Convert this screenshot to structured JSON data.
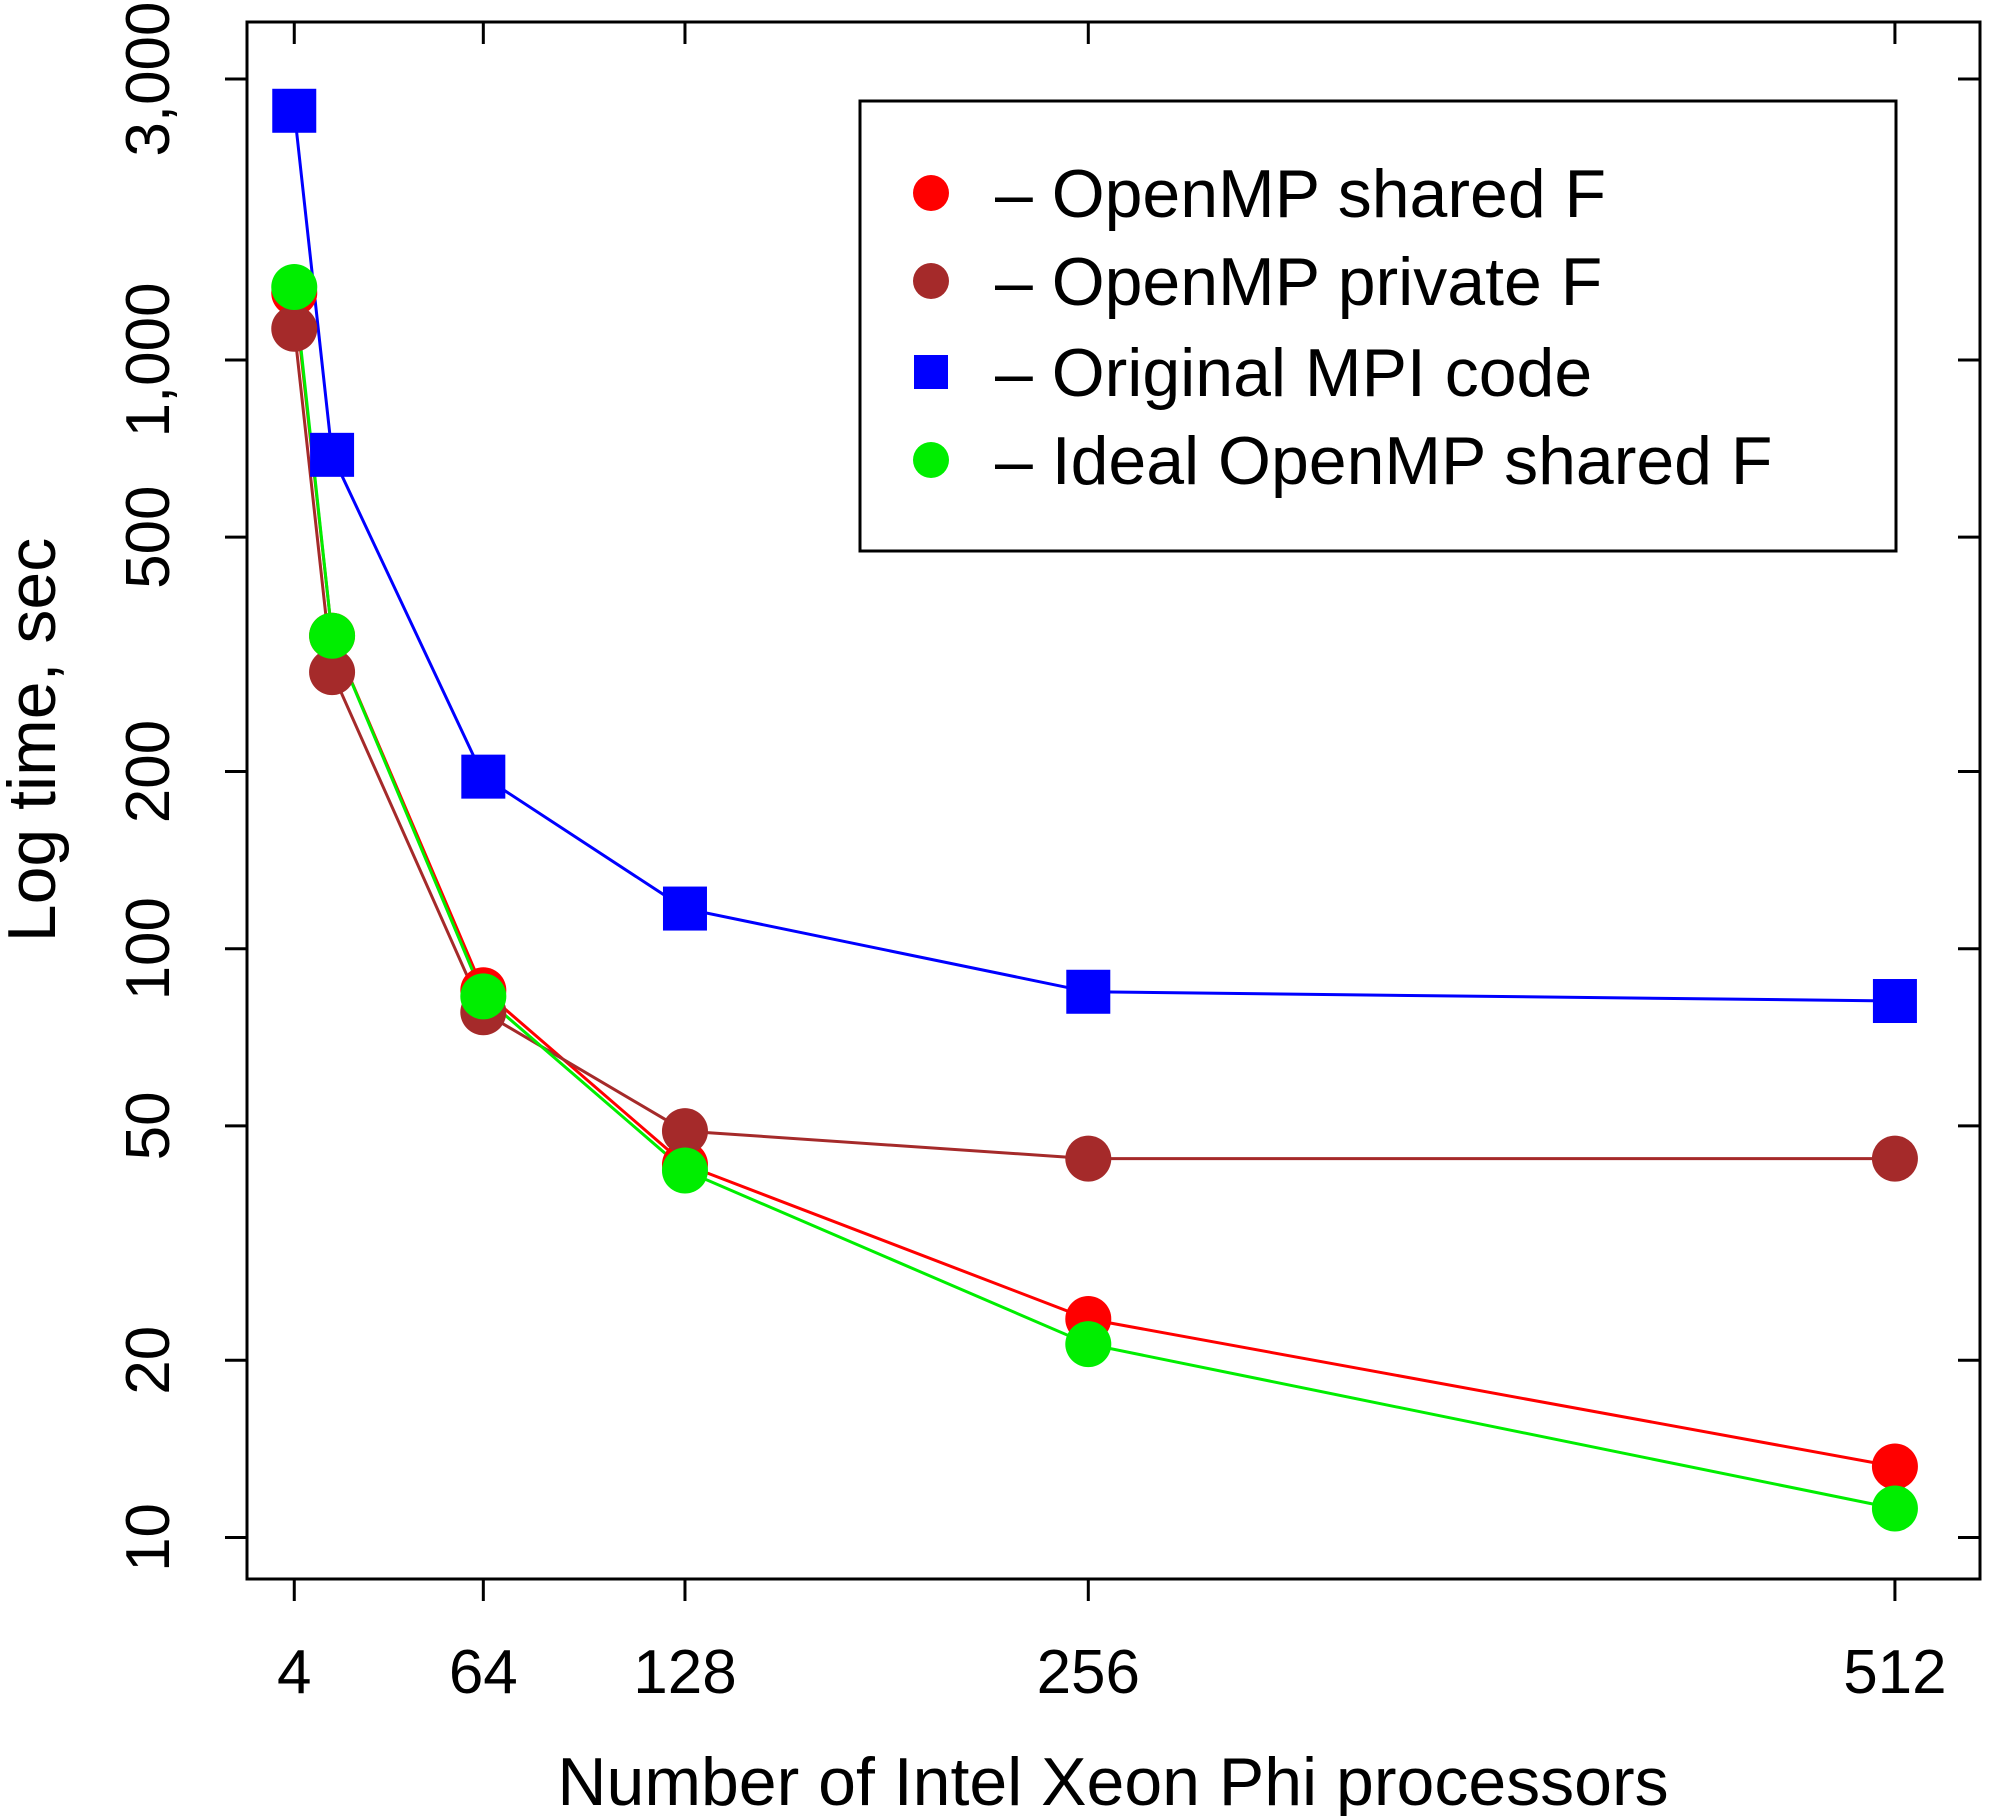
{
  "chart_data": {
    "type": "line",
    "xlabel": "Number of Intel Xeon Phi processors",
    "ylabel": "Log time, sec",
    "y_scale": "log",
    "xlim": [
      -11,
      539
    ],
    "ylim": [
      8.5,
      3750
    ],
    "x_ticks": [
      4,
      64,
      128,
      256,
      512
    ],
    "x_tick_labels": [
      "4",
      "64",
      "128",
      "256",
      "512"
    ],
    "y_ticks": [
      10,
      20,
      50,
      100,
      200,
      500,
      1000,
      3000
    ],
    "y_tick_labels": [
      "10",
      "20",
      "50",
      "100",
      "200",
      "500",
      "1,000",
      "3,000"
    ],
    "legend_position": "top-right",
    "grid": false,
    "series": [
      {
        "name": "– OpenMP shared F",
        "color": "#ff0000",
        "marker": "circle",
        "x": [
          4,
          16,
          64,
          128,
          256,
          512
        ],
        "y": [
          1300,
          340,
          85,
          43,
          23.5,
          13.2
        ]
      },
      {
        "name": "– OpenMP private F",
        "color": "#a52a2a",
        "marker": "circle",
        "x": [
          4,
          16,
          64,
          128,
          256,
          512
        ],
        "y": [
          1130,
          295,
          78,
          49,
          44,
          44
        ]
      },
      {
        "name": "– Original MPI code",
        "color": "#0000ff",
        "marker": "square",
        "x": [
          4,
          16,
          64,
          128,
          256,
          512
        ],
        "y": [
          2650,
          690,
          196,
          117,
          84.5,
          81.5
        ]
      },
      {
        "name": "– Ideal OpenMP shared F",
        "color": "#00ee00",
        "marker": "circle",
        "x": [
          4,
          16,
          64,
          128,
          256,
          512
        ],
        "y": [
          1330,
          340,
          83,
          42,
          21.3,
          11.2
        ]
      }
    ]
  }
}
